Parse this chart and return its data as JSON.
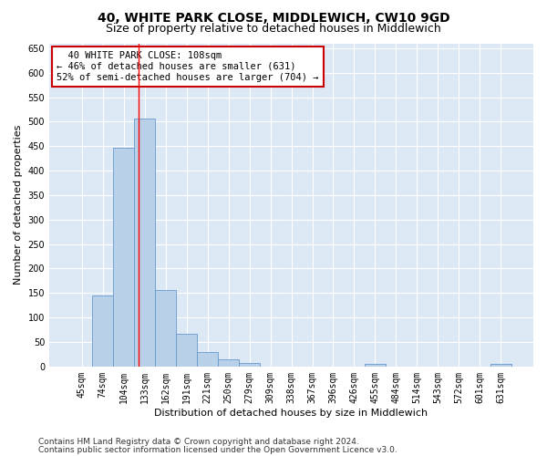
{
  "title": "40, WHITE PARK CLOSE, MIDDLEWICH, CW10 9GD",
  "subtitle": "Size of property relative to detached houses in Middlewich",
  "xlabel": "Distribution of detached houses by size in Middlewich",
  "ylabel": "Number of detached properties",
  "footnote1": "Contains HM Land Registry data © Crown copyright and database right 2024.",
  "footnote2": "Contains public sector information licensed under the Open Government Licence v3.0.",
  "bin_labels": [
    "45sqm",
    "74sqm",
    "104sqm",
    "133sqm",
    "162sqm",
    "191sqm",
    "221sqm",
    "250sqm",
    "279sqm",
    "309sqm",
    "338sqm",
    "367sqm",
    "396sqm",
    "426sqm",
    "455sqm",
    "484sqm",
    "514sqm",
    "543sqm",
    "572sqm",
    "601sqm",
    "631sqm"
  ],
  "bar_values": [
    0,
    145,
    447,
    507,
    157,
    67,
    30,
    14,
    8,
    0,
    0,
    0,
    0,
    0,
    5,
    0,
    0,
    0,
    0,
    0,
    5
  ],
  "bar_color": "#b8d0e8",
  "bar_edge_color": "#6699cc",
  "ylim": [
    0,
    660
  ],
  "yticks": [
    0,
    50,
    100,
    150,
    200,
    250,
    300,
    350,
    400,
    450,
    500,
    550,
    600,
    650
  ],
  "red_line_x": 2.72,
  "annotation_text": "  40 WHITE PARK CLOSE: 108sqm\n← 46% of detached houses are smaller (631)\n52% of semi-detached houses are larger (704) →",
  "annotation_box_color": "#ffffff",
  "annotation_box_edge_color": "#cc0000",
  "figure_bg_color": "#ffffff",
  "plot_bg_color": "#dce9f5",
  "grid_color": "#ffffff",
  "title_fontsize": 10,
  "subtitle_fontsize": 9,
  "annotation_fontsize": 7.5,
  "tick_fontsize": 7,
  "xlabel_fontsize": 8,
  "ylabel_fontsize": 8,
  "footnote_fontsize": 6.5
}
